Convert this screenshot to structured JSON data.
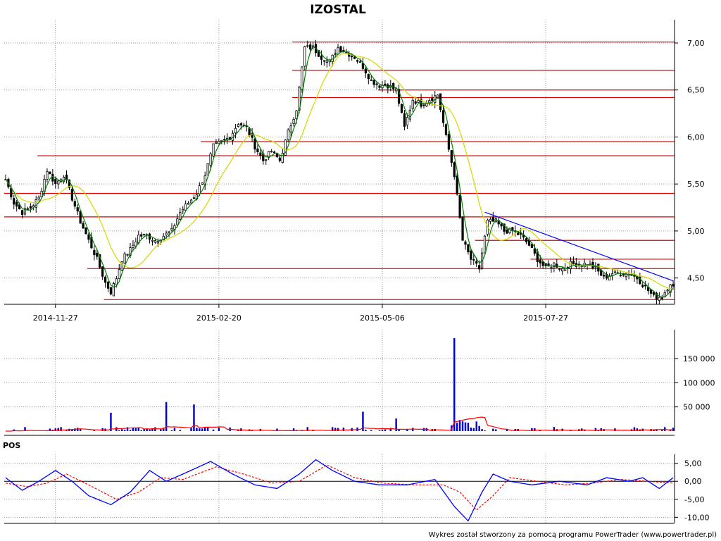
{
  "chart_data": {
    "type": "candlestick",
    "title": "IZOSTAL",
    "footer": "Wykres został stworzony za pomocą programu PowerTrader (www.powertrader.pl)",
    "price_panel": {
      "ylim": [
        4.22,
        7.12
      ],
      "y_ticks": [
        "7,00",
        "6,50",
        "6,00",
        "5,50",
        "5,00",
        "4,50"
      ],
      "y_tick_values": [
        7.0,
        6.5,
        6.0,
        5.5,
        5.0,
        4.5
      ],
      "x_ticks": [
        {
          "label": "2014-11-27",
          "index": 18
        },
        {
          "label": "2015-02-20",
          "index": 77
        },
        {
          "label": "2015-05-06",
          "index": 136
        },
        {
          "label": "2015-07-27",
          "index": 195
        }
      ],
      "n_bars": 242,
      "close_anchors": [
        [
          0,
          5.55
        ],
        [
          3,
          5.3
        ],
        [
          6,
          5.2
        ],
        [
          9,
          5.25
        ],
        [
          12,
          5.35
        ],
        [
          15,
          5.65
        ],
        [
          18,
          5.5
        ],
        [
          21,
          5.6
        ],
        [
          24,
          5.35
        ],
        [
          27,
          5.1
        ],
        [
          30,
          4.9
        ],
        [
          33,
          4.7
        ],
        [
          36,
          4.45
        ],
        [
          38,
          4.35
        ],
        [
          40,
          4.5
        ],
        [
          42,
          4.7
        ],
        [
          45,
          4.8
        ],
        [
          48,
          4.95
        ],
        [
          51,
          4.95
        ],
        [
          54,
          4.9
        ],
        [
          57,
          4.95
        ],
        [
          60,
          5.0
        ],
        [
          63,
          5.2
        ],
        [
          66,
          5.3
        ],
        [
          69,
          5.4
        ],
        [
          72,
          5.6
        ],
        [
          75,
          5.9
        ],
        [
          78,
          5.95
        ],
        [
          81,
          6.0
        ],
        [
          84,
          6.15
        ],
        [
          87,
          6.1
        ],
        [
          90,
          5.9
        ],
        [
          93,
          5.75
        ],
        [
          96,
          5.85
        ],
        [
          99,
          5.75
        ],
        [
          102,
          6.05
        ],
        [
          105,
          6.3
        ],
        [
          108,
          6.95
        ],
        [
          111,
          6.95
        ],
        [
          114,
          6.85
        ],
        [
          117,
          6.8
        ],
        [
          120,
          6.95
        ],
        [
          123,
          6.9
        ],
        [
          126,
          6.85
        ],
        [
          129,
          6.75
        ],
        [
          132,
          6.6
        ],
        [
          135,
          6.55
        ],
        [
          138,
          6.55
        ],
        [
          141,
          6.5
        ],
        [
          144,
          6.1
        ],
        [
          147,
          6.4
        ],
        [
          150,
          6.35
        ],
        [
          153,
          6.4
        ],
        [
          156,
          6.45
        ],
        [
          159,
          6.0
        ],
        [
          162,
          5.6
        ],
        [
          165,
          4.9
        ],
        [
          168,
          4.7
        ],
        [
          171,
          4.6
        ],
        [
          174,
          5.1
        ],
        [
          177,
          5.1
        ],
        [
          180,
          5.0
        ],
        [
          183,
          5.0
        ],
        [
          186,
          4.95
        ],
        [
          189,
          4.85
        ],
        [
          192,
          4.7
        ],
        [
          195,
          4.6
        ],
        [
          198,
          4.65
        ],
        [
          201,
          4.6
        ],
        [
          204,
          4.65
        ],
        [
          207,
          4.65
        ],
        [
          210,
          4.65
        ],
        [
          213,
          4.6
        ],
        [
          216,
          4.5
        ],
        [
          219,
          4.55
        ],
        [
          222,
          4.55
        ],
        [
          225,
          4.55
        ],
        [
          228,
          4.5
        ],
        [
          231,
          4.4
        ],
        [
          234,
          4.3
        ],
        [
          237,
          4.3
        ],
        [
          240,
          4.45
        ],
        [
          241,
          4.4
        ]
      ],
      "support_resistance_levels": [
        7.01,
        6.71,
        6.5,
        6.42,
        5.95,
        5.8,
        5.4,
        5.15,
        4.9,
        4.7,
        4.6,
        4.27
      ],
      "trendline": {
        "from": [
          173,
          5.2
        ],
        "to": [
          241,
          4.47
        ]
      },
      "ma_short_color": "#008000",
      "ma_long_color": "#d6d600",
      "level_color": "#e00000",
      "trendline_color": "#0000ff"
    },
    "volume_panel": {
      "ylim": [
        0,
        195000
      ],
      "y_ticks": [
        "150 000",
        "100 000",
        "50 000"
      ],
      "y_tick_values": [
        150000,
        100000,
        50000
      ],
      "spikes": [
        [
          38,
          38000
        ],
        [
          58,
          60000
        ],
        [
          68,
          55000
        ],
        [
          129,
          40000
        ],
        [
          141,
          26000
        ],
        [
          162,
          192000
        ],
        [
          164,
          23000
        ],
        [
          165,
          20000
        ]
      ],
      "bar_color": "#0000cc",
      "avg_color": "#ff0000"
    },
    "pos_panel": {
      "label": "POS",
      "ylim": [
        -11.5,
        6.5
      ],
      "y_ticks": [
        "5,00",
        "0,00",
        "-5,00",
        "-10,00"
      ],
      "y_tick_values": [
        5,
        0,
        -5,
        -10
      ],
      "pos_anchors": [
        [
          0,
          1
        ],
        [
          6,
          -2.5
        ],
        [
          12,
          0
        ],
        [
          18,
          3
        ],
        [
          24,
          0
        ],
        [
          30,
          -4
        ],
        [
          38,
          -6.5
        ],
        [
          45,
          -3
        ],
        [
          52,
          3
        ],
        [
          58,
          0
        ],
        [
          64,
          2
        ],
        [
          74,
          5.5
        ],
        [
          82,
          2
        ],
        [
          90,
          -1
        ],
        [
          98,
          -2
        ],
        [
          106,
          2
        ],
        [
          112,
          6
        ],
        [
          118,
          3
        ],
        [
          126,
          0
        ],
        [
          135,
          -1
        ],
        [
          145,
          -1
        ],
        [
          155,
          0.5
        ],
        [
          162,
          -7
        ],
        [
          167,
          -11
        ],
        [
          172,
          -3
        ],
        [
          176,
          2
        ],
        [
          182,
          0
        ],
        [
          190,
          -1
        ],
        [
          200,
          0
        ],
        [
          210,
          -1
        ],
        [
          217,
          1
        ],
        [
          225,
          0
        ],
        [
          230,
          1
        ],
        [
          236,
          -2
        ],
        [
          241,
          1
        ]
      ],
      "signal_anchors": [
        [
          0,
          -0.5
        ],
        [
          8,
          -1.5
        ],
        [
          15,
          -0.5
        ],
        [
          22,
          2
        ],
        [
          30,
          -1
        ],
        [
          40,
          -5
        ],
        [
          48,
          -3
        ],
        [
          56,
          1
        ],
        [
          64,
          0.5
        ],
        [
          76,
          4
        ],
        [
          86,
          2
        ],
        [
          96,
          -0.5
        ],
        [
          106,
          0
        ],
        [
          116,
          4.5
        ],
        [
          126,
          1
        ],
        [
          136,
          -0.5
        ],
        [
          148,
          -1
        ],
        [
          158,
          -1
        ],
        [
          164,
          -3
        ],
        [
          170,
          -8
        ],
        [
          176,
          -4
        ],
        [
          182,
          1
        ],
        [
          192,
          0
        ],
        [
          202,
          -1
        ],
        [
          212,
          -0.5
        ],
        [
          222,
          0.5
        ],
        [
          232,
          0
        ],
        [
          241,
          -0.5
        ]
      ],
      "pos_color": "#0000ff",
      "signal_color": "#ff0000"
    }
  }
}
